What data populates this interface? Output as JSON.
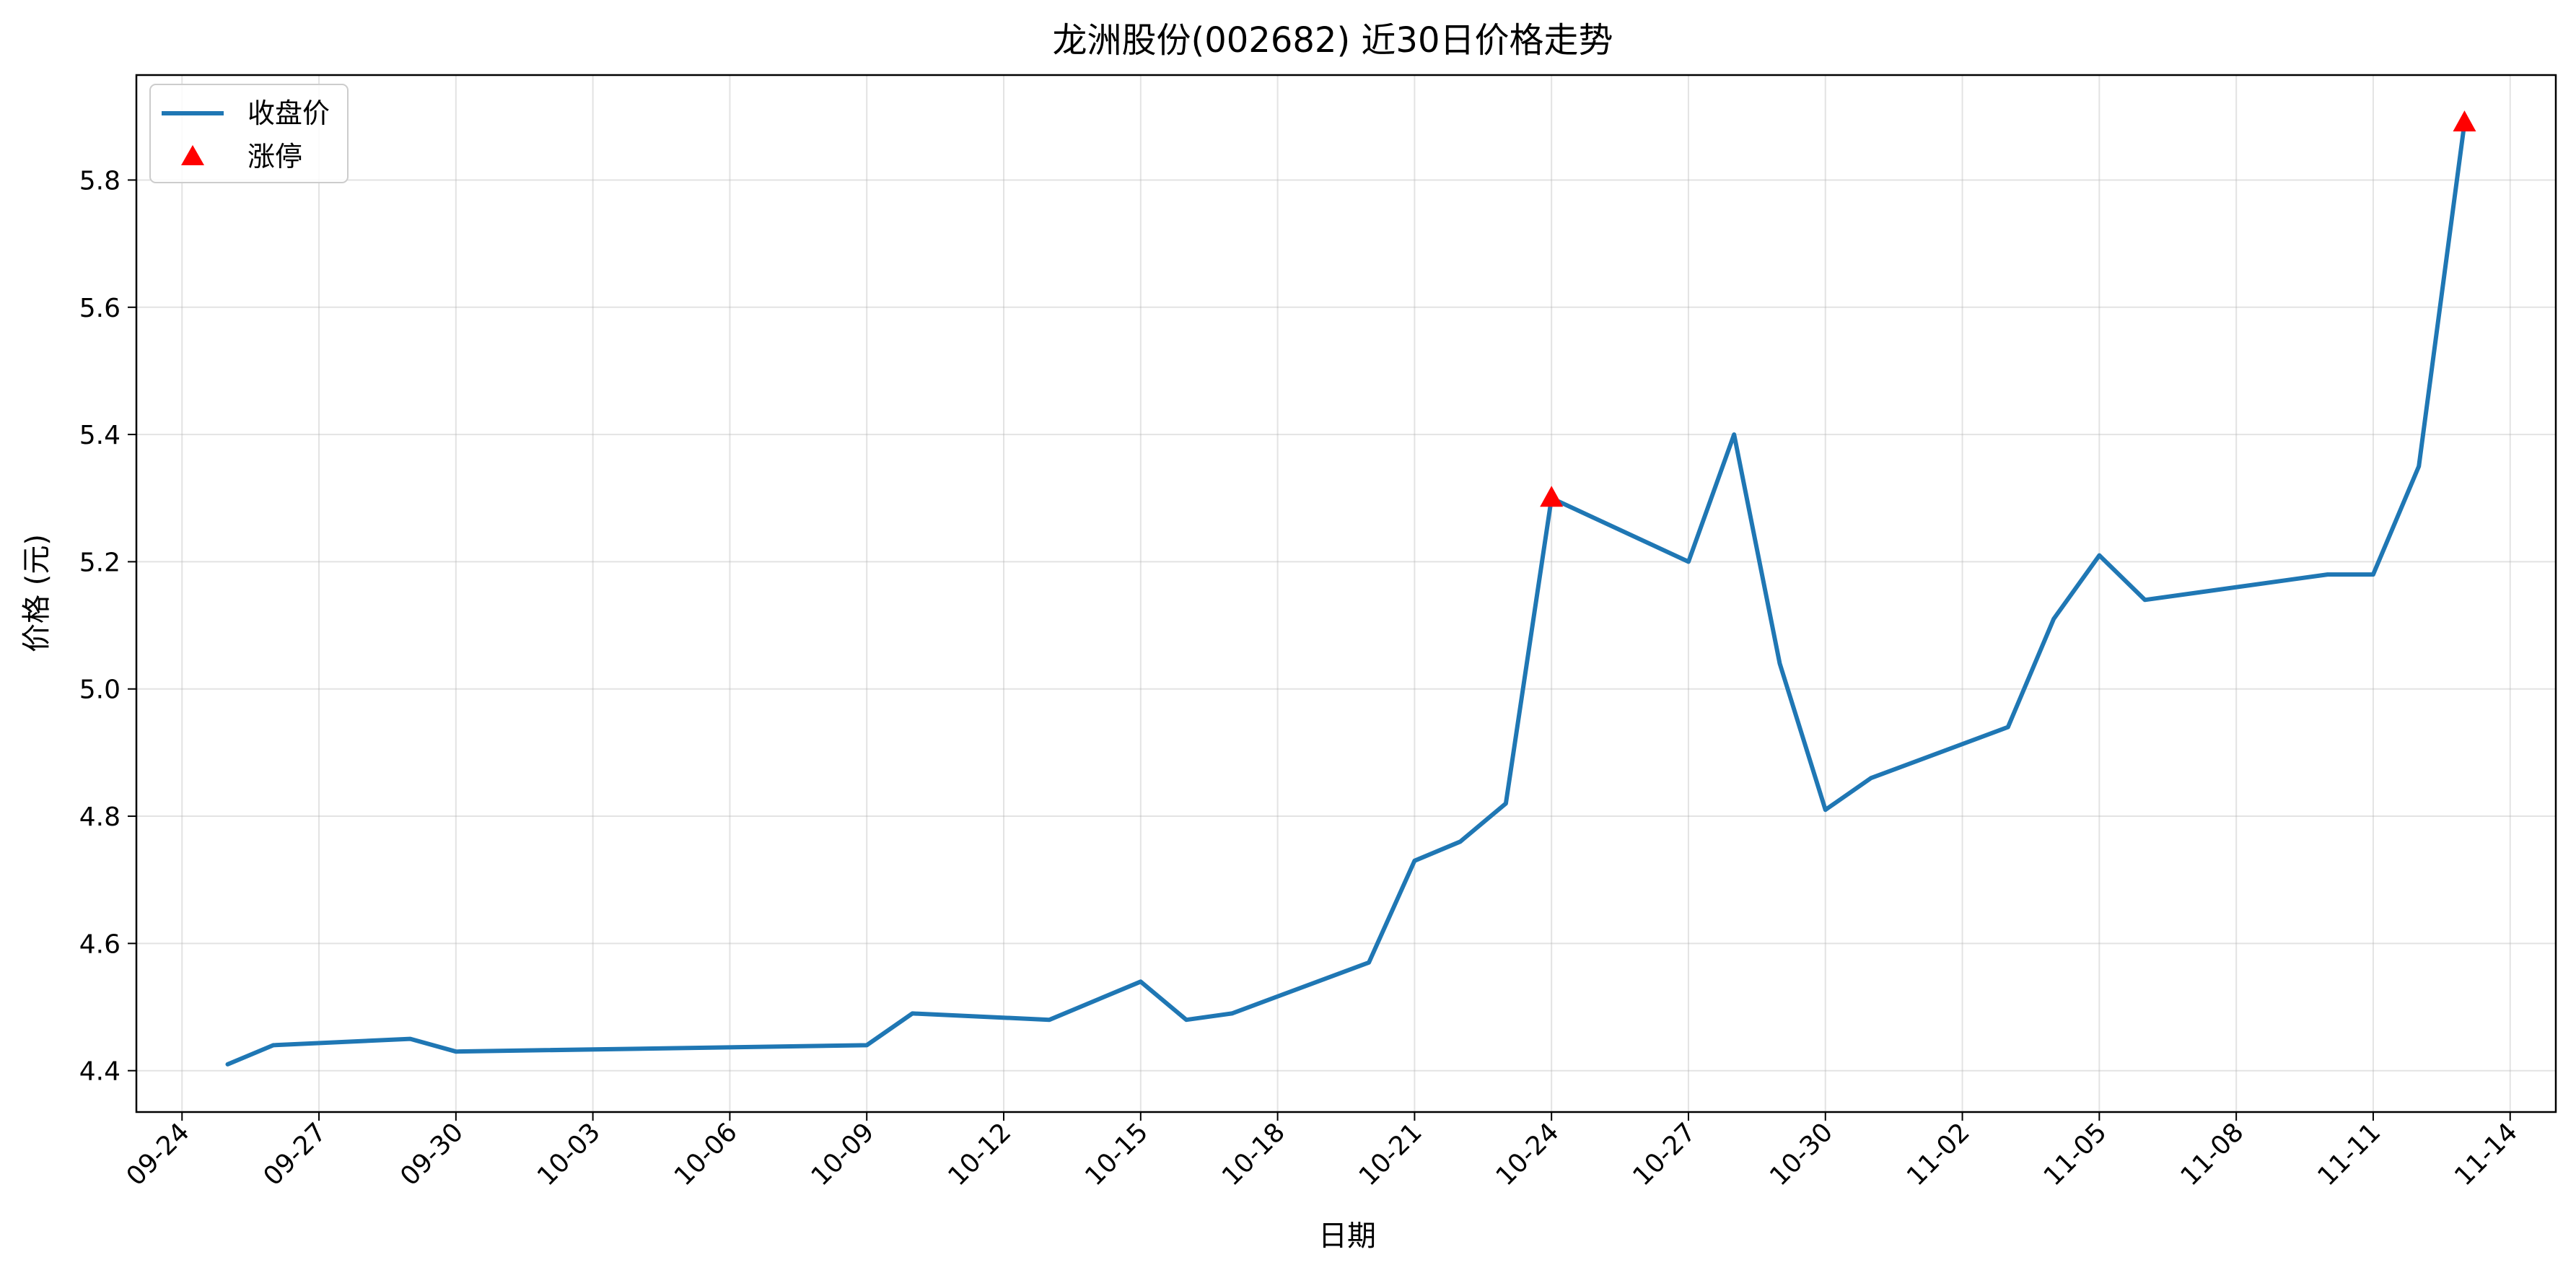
{
  "chart_data": {
    "type": "line",
    "title": "龙洲股份(002682) 近30日价格走势",
    "xlabel": "日期",
    "ylabel": "价格 (元)",
    "x_date_range": [
      "2025-09-23",
      "2025-11-15"
    ],
    "ylim": [
      4.335,
      5.965
    ],
    "grid": true,
    "legend_position": "top-left",
    "x_ticks": [
      {
        "date": "2025-09-24",
        "label": "09-24"
      },
      {
        "date": "2025-09-27",
        "label": "09-27"
      },
      {
        "date": "2025-09-30",
        "label": "09-30"
      },
      {
        "date": "2025-10-03",
        "label": "10-03"
      },
      {
        "date": "2025-10-06",
        "label": "10-06"
      },
      {
        "date": "2025-10-09",
        "label": "10-09"
      },
      {
        "date": "2025-10-12",
        "label": "10-12"
      },
      {
        "date": "2025-10-15",
        "label": "10-15"
      },
      {
        "date": "2025-10-18",
        "label": "10-18"
      },
      {
        "date": "2025-10-21",
        "label": "10-21"
      },
      {
        "date": "2025-10-24",
        "label": "10-24"
      },
      {
        "date": "2025-10-27",
        "label": "10-27"
      },
      {
        "date": "2025-10-30",
        "label": "10-30"
      },
      {
        "date": "2025-11-02",
        "label": "11-02"
      },
      {
        "date": "2025-11-05",
        "label": "11-05"
      },
      {
        "date": "2025-11-08",
        "label": "11-08"
      },
      {
        "date": "2025-11-11",
        "label": "11-11"
      },
      {
        "date": "2025-11-14",
        "label": "11-14"
      }
    ],
    "y_ticks": [
      {
        "value": 4.4,
        "label": "4.4"
      },
      {
        "value": 4.6,
        "label": "4.6"
      },
      {
        "value": 4.8,
        "label": "4.8"
      },
      {
        "value": 5.0,
        "label": "5.0"
      },
      {
        "value": 5.2,
        "label": "5.2"
      },
      {
        "value": 5.4,
        "label": "5.4"
      },
      {
        "value": 5.6,
        "label": "5.6"
      },
      {
        "value": 5.8,
        "label": "5.8"
      }
    ],
    "series": [
      {
        "name": "收盘价",
        "color": "#1f77b4",
        "points": [
          {
            "x": "2025-09-25",
            "y": 4.41
          },
          {
            "x": "2025-09-26",
            "y": 4.44
          },
          {
            "x": "2025-09-29",
            "y": 4.45
          },
          {
            "x": "2025-09-30",
            "y": 4.43
          },
          {
            "x": "2025-10-09",
            "y": 4.44
          },
          {
            "x": "2025-10-10",
            "y": 4.49
          },
          {
            "x": "2025-10-13",
            "y": 4.48
          },
          {
            "x": "2025-10-15",
            "y": 4.54
          },
          {
            "x": "2025-10-16",
            "y": 4.48
          },
          {
            "x": "2025-10-17",
            "y": 4.49
          },
          {
            "x": "2025-10-20",
            "y": 4.57
          },
          {
            "x": "2025-10-21",
            "y": 4.73
          },
          {
            "x": "2025-10-22",
            "y": 4.76
          },
          {
            "x": "2025-10-23",
            "y": 4.82
          },
          {
            "x": "2025-10-24",
            "y": 5.3
          },
          {
            "x": "2025-10-27",
            "y": 5.2
          },
          {
            "x": "2025-10-28",
            "y": 5.4
          },
          {
            "x": "2025-10-29",
            "y": 5.04
          },
          {
            "x": "2025-10-30",
            "y": 4.81
          },
          {
            "x": "2025-10-31",
            "y": 4.86
          },
          {
            "x": "2025-11-03",
            "y": 4.94
          },
          {
            "x": "2025-11-04",
            "y": 5.11
          },
          {
            "x": "2025-11-05",
            "y": 5.21
          },
          {
            "x": "2025-11-06",
            "y": 5.14
          },
          {
            "x": "2025-11-10",
            "y": 5.18
          },
          {
            "x": "2025-11-11",
            "y": 5.18
          },
          {
            "x": "2025-11-12",
            "y": 5.35
          },
          {
            "x": "2025-11-13",
            "y": 5.89
          }
        ]
      },
      {
        "name": "涨停",
        "color": "#ff0000",
        "marker": "triangle-up",
        "points": [
          {
            "x": "2025-10-24",
            "y": 5.3
          },
          {
            "x": "2025-11-13",
            "y": 5.89
          }
        ]
      }
    ]
  }
}
